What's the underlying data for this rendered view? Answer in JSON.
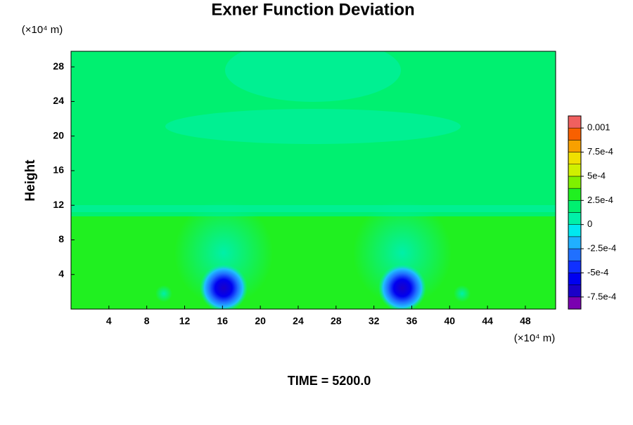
{
  "chart_data": {
    "type": "contour",
    "title": "Exner Function Deviation",
    "y_label": "Height",
    "y_unit": "(×10⁴ m)",
    "x_unit": "(×10⁴ m)",
    "footer": "TIME = 5200.0",
    "xlim": [
      0,
      51.2
    ],
    "xticks": [
      4,
      8,
      12,
      16,
      20,
      24,
      28,
      32,
      36,
      40,
      44,
      48
    ],
    "ylim": [
      0,
      29.8
    ],
    "yticks": [
      4,
      8,
      12,
      16,
      20,
      24,
      28
    ],
    "colorbar": {
      "lim": [
        -0.000875,
        0.001125
      ],
      "ticks": [
        {
          "value": 0.001,
          "label": "0.001"
        },
        {
          "value": 0.00075,
          "label": "7.5e-4"
        },
        {
          "value": 0.0005,
          "label": "5e-4"
        },
        {
          "value": 0.00025,
          "label": "2.5e-4"
        },
        0,
        {
          "value": -0.00025,
          "label": "-2.5e-4"
        },
        {
          "value": -0.0005,
          "label": "-5e-4"
        },
        {
          "value": -0.00075,
          "label": "-7.5e-4"
        }
      ],
      "colors": [
        "#7a00b0",
        "#1a00c8",
        "#0000f0",
        "#1030ff",
        "#2070ff",
        "#20b0ff",
        "#00e8f0",
        "#00f0a8",
        "#00f070",
        "#20f020",
        "#80f000",
        "#d0f000",
        "#f0e000",
        "#f8a000",
        "#f86000",
        "#f06060"
      ]
    }
  }
}
